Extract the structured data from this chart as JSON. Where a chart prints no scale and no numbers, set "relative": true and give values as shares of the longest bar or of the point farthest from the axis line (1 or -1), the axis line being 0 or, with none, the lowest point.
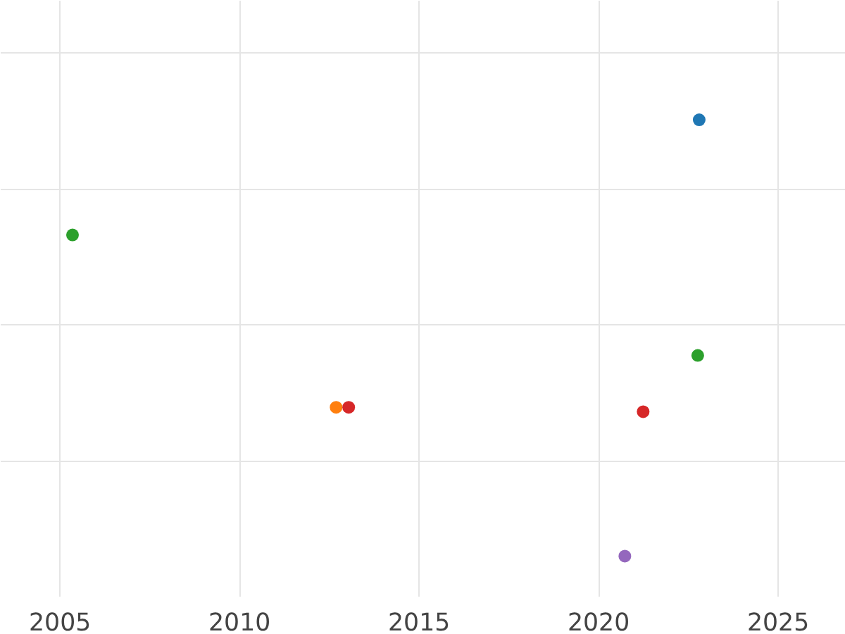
{
  "chart_data": {
    "type": "scatter",
    "relative": true,
    "x": [
      2022.8,
      2005.35,
      2022.76,
      2012.69,
      2013.04,
      2021.24,
      2020.73
    ],
    "values": [
      1,
      0.736,
      0.46,
      0.341,
      0.341,
      0.331,
      0
    ],
    "colors": [
      "#1f77b4",
      "#2ca02c",
      "#2ca02c",
      "#ff7f0e",
      "#d62728",
      "#d62728",
      "#9467bd"
    ],
    "xlim": [
      2003.35,
      2026.88
    ],
    "xticks": [
      2005,
      2010,
      2015,
      2020,
      2025
    ],
    "grid": true,
    "marker": "circle"
  }
}
